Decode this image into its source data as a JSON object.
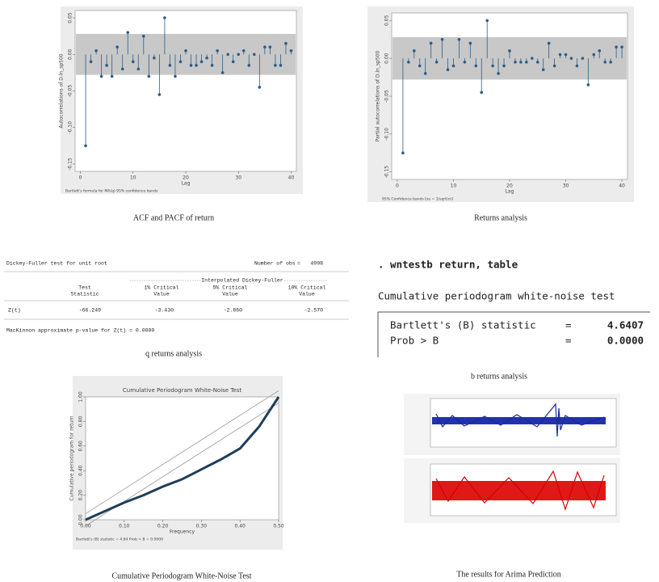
{
  "figures": [
    {
      "caption": "ACF and PACF of return",
      "chart_data": {
        "type": "stem",
        "y_label": "Autocorrelations of D.ln_sp500",
        "x_label": "Lag",
        "note": "Bartlett's formula for MA(q) 95% confidence bands",
        "x": [
          1,
          2,
          3,
          4,
          5,
          6,
          7,
          8,
          9,
          10,
          11,
          12,
          13,
          14,
          15,
          16,
          17,
          18,
          19,
          20,
          21,
          22,
          23,
          24,
          25,
          26,
          27,
          28,
          29,
          30,
          31,
          32,
          33,
          34,
          35,
          36,
          37,
          38,
          39,
          40
        ],
        "values": [
          -0.125,
          -0.01,
          0.005,
          -0.03,
          -0.015,
          -0.03,
          0.01,
          -0.02,
          0.03,
          -0.01,
          -0.02,
          0.025,
          -0.03,
          -0.005,
          -0.055,
          0.05,
          -0.015,
          -0.03,
          -0.01,
          0.005,
          -0.015,
          -0.015,
          -0.01,
          -0.005,
          -0.015,
          0.005,
          -0.025,
          0.0,
          -0.01,
          0.0,
          0.005,
          -0.015,
          0.0,
          -0.045,
          0.01,
          0.01,
          -0.015,
          -0.015,
          0.015,
          0.005
        ],
        "xlim": [
          -1,
          41
        ],
        "ylim": [
          -0.16,
          0.06
        ],
        "xticks": [
          0,
          10,
          20,
          30,
          40
        ],
        "yticks": [
          {
            "value": -0.15,
            "label": "-0.15"
          },
          {
            "value": -0.1,
            "label": "-0.10"
          },
          {
            "value": -0.05,
            "label": "-0.05"
          },
          {
            "value": 0,
            "label": "0.00"
          },
          {
            "value": 0.05,
            "label": "0.05"
          }
        ],
        "confidence_band": [
          -0.028,
          0.028
        ],
        "color": "#2d5d86",
        "band_color": "#c8c8c8"
      }
    },
    {
      "caption": "Returns analysis",
      "chart_data": {
        "type": "stem",
        "y_label": "Partial autocorrelations of D.ln_sp500",
        "x_label": "Lag",
        "note": "95% Confidence bands [se = 1/sqrt(n)]",
        "x": [
          1,
          2,
          3,
          4,
          5,
          6,
          7,
          8,
          9,
          10,
          11,
          12,
          13,
          14,
          15,
          16,
          17,
          18,
          19,
          20,
          21,
          22,
          23,
          24,
          25,
          26,
          27,
          28,
          29,
          30,
          31,
          32,
          33,
          34,
          35,
          36,
          37,
          38,
          39,
          40
        ],
        "values": [
          -0.125,
          -0.005,
          0.01,
          -0.01,
          -0.02,
          0.02,
          -0.005,
          0.025,
          -0.015,
          -0.01,
          0.025,
          -0.005,
          0.02,
          -0.01,
          -0.045,
          0.05,
          -0.01,
          -0.02,
          -0.01,
          0.01,
          -0.005,
          -0.005,
          -0.005,
          0.0,
          -0.005,
          -0.015,
          0.02,
          -0.01,
          0.005,
          0.005,
          0.0,
          -0.01,
          0.0,
          -0.035,
          0.005,
          0.01,
          -0.005,
          -0.005,
          0.015,
          0.015
        ],
        "xlim": [
          -1,
          41
        ],
        "ylim": [
          -0.16,
          0.06
        ],
        "xticks": [
          0,
          10,
          20,
          30,
          40
        ],
        "yticks": [
          {
            "value": -0.15,
            "label": "-0.15"
          },
          {
            "value": -0.1,
            "label": "-0.10"
          },
          {
            "value": -0.05,
            "label": "-0.05"
          },
          {
            "value": 0,
            "label": "0.00"
          },
          {
            "value": 0.05,
            "label": "0.05"
          }
        ],
        "confidence_band": [
          -0.028,
          0.028
        ],
        "color": "#2d5d86",
        "band_color": "#c8c8c8"
      }
    },
    {
      "caption": "q returns analysis",
      "table": {
        "title": "Dickey-Fuller test for unit root",
        "obs_label": "Number of obs",
        "obs_eq": "=",
        "obs": "4998",
        "group_header": "Interpolated Dickey-Fuller",
        "columns": [
          [
            "Test",
            "Statistic"
          ],
          [
            "1% Critical",
            "Value"
          ],
          [
            "5% Critical",
            "Value"
          ],
          [
            "10% Critical",
            "Value"
          ]
        ],
        "row": [
          "Z(t)",
          "-66.249",
          "-3.430",
          "-2.860",
          "-2.570"
        ],
        "footer": "MacKinnon approximate p-value for Z(t) = 0.0000"
      }
    },
    {
      "caption": "b returns analysis",
      "output": {
        "command": ". wntestb return, table",
        "title": "Cumulative periodogram white-noise test",
        "rows": [
          [
            "Bartlett's (B) statistic",
            "=",
            "4.6407"
          ],
          [
            "Prob > B",
            "=",
            "0.0000"
          ]
        ]
      }
    },
    {
      "caption": "Cumulative Periodogram White-Noise Test",
      "chart_data": {
        "type": "line",
        "title": "Cumulative Periodogram White-Noise Test",
        "y_label": "Cumulative periodogram for return",
        "x_label": "Frequency",
        "note": "Bartlett's (B) statistic = 4.64  Prob > B = 0.0000",
        "x": [
          0,
          0.05,
          0.1,
          0.15,
          0.2,
          0.25,
          0.3,
          0.35,
          0.4,
          0.45,
          0.5
        ],
        "values": [
          0,
          0.07,
          0.14,
          0.2,
          0.27,
          0.33,
          0.41,
          0.49,
          0.58,
          0.76,
          1.0
        ],
        "xlim": [
          0,
          0.5
        ],
        "ylim": [
          0,
          1
        ],
        "xticks": [
          {
            "value": 0,
            "label": "0.00"
          },
          {
            "value": 0.1,
            "label": "0.10"
          },
          {
            "value": 0.2,
            "label": "0.20"
          },
          {
            "value": 0.3,
            "label": "0.30"
          },
          {
            "value": 0.4,
            "label": "0.40"
          },
          {
            "value": 0.5,
            "label": "0.50"
          }
        ],
        "yticks": [
          {
            "value": 0,
            "label": "0.00"
          },
          {
            "value": 0.2,
            "label": "0.20"
          },
          {
            "value": 0.4,
            "label": "0.40"
          },
          {
            "value": 0.6,
            "label": "0.60"
          },
          {
            "value": 0.8,
            "label": "0.80"
          },
          {
            "value": 1,
            "label": "1.00"
          }
        ],
        "band": 0.05,
        "color": "#1e3f5a",
        "band_color": "#9a9a9a"
      }
    },
    {
      "caption": "The results for Arima Prediction"
    }
  ]
}
